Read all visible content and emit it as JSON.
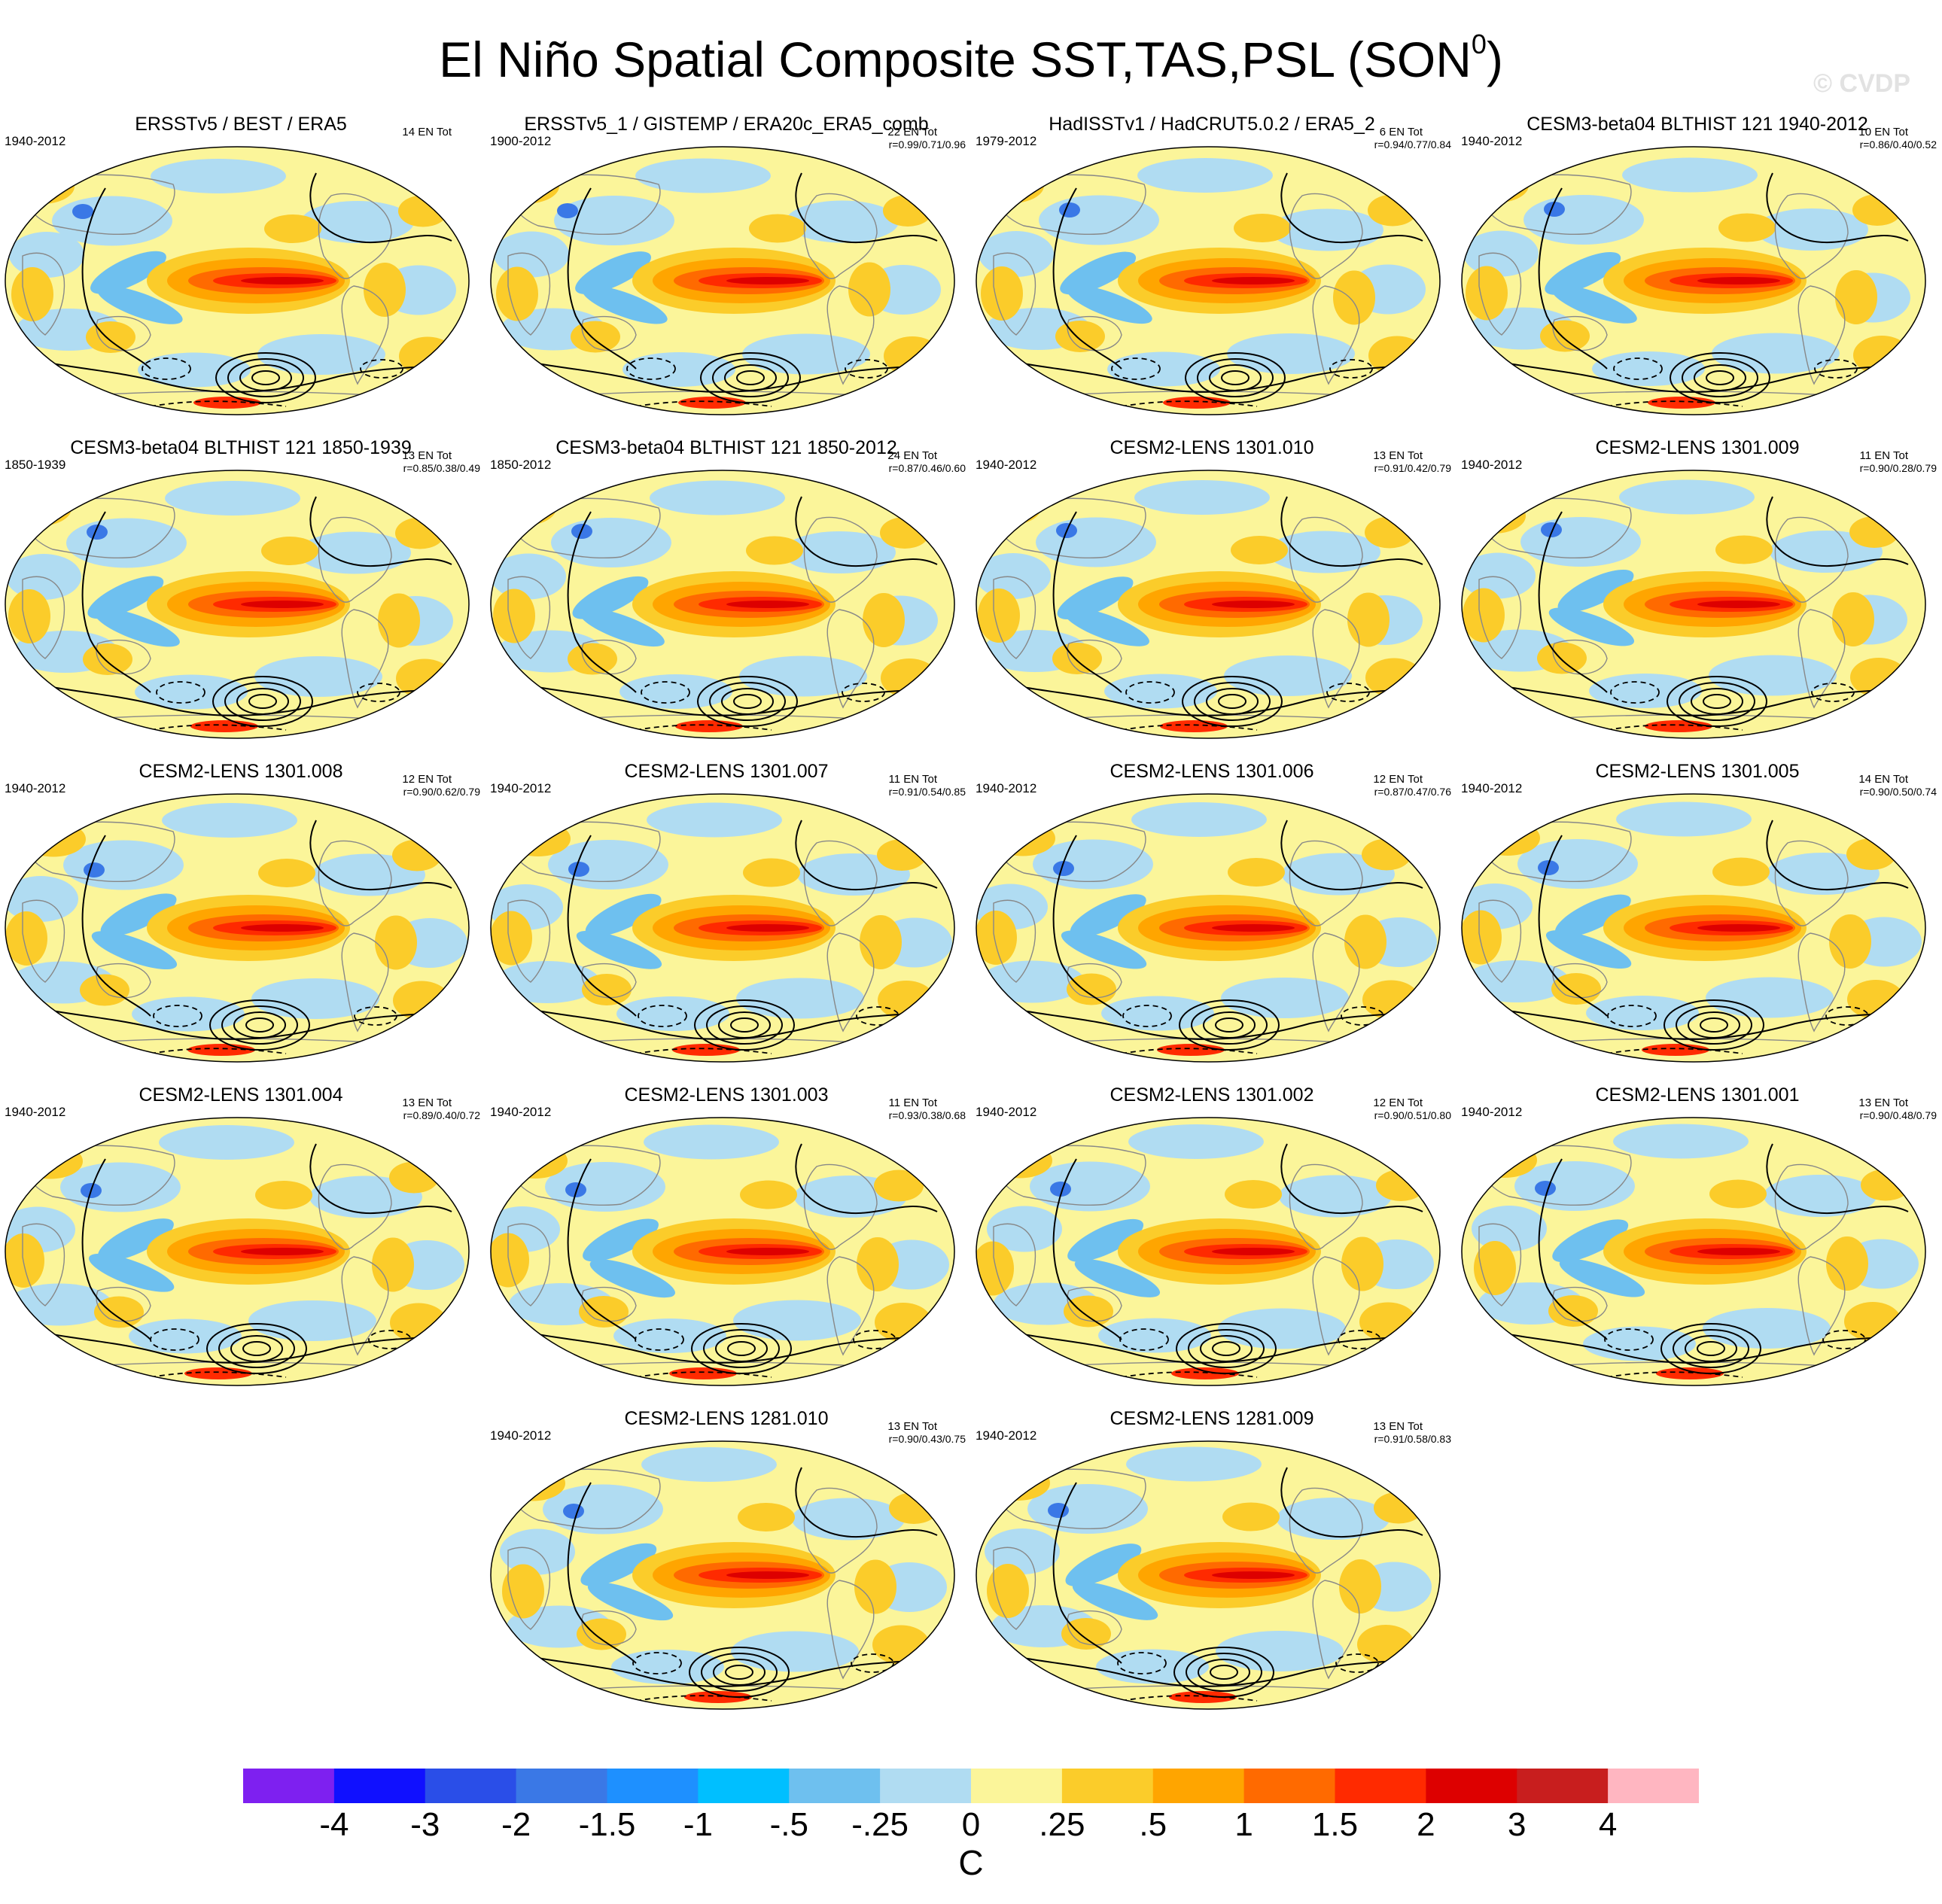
{
  "figure": {
    "title": "El Niño Spatial Composite SST,TAS,PSL (SON",
    "title_superscript": "0",
    "title_close": ")",
    "watermark": "© CVDP"
  },
  "panels": [
    {
      "title": "ERSSTv5 / BEST / ERA5",
      "years": "1940-2012",
      "count": "14 EN Tot",
      "rcorr": ""
    },
    {
      "title": "ERSSTv5_1 / GISTEMP / ERA20c_ERA5_comb",
      "years": "1900-2012",
      "count": "22 EN Tot",
      "rcorr": "r=0.99/0.71/0.96"
    },
    {
      "title": "HadISSTv1 / HadCRUT5.0.2 / ERA5_2",
      "years": "1979-2012",
      "count": "6 EN Tot",
      "rcorr": "r=0.94/0.77/0.84"
    },
    {
      "title": "CESM3-beta04 BLTHIST 121 1940-2012",
      "years": "1940-2012",
      "count": "10 EN Tot",
      "rcorr": "r=0.86/0.40/0.52"
    },
    {
      "title": "CESM3-beta04 BLTHIST 121 1850-1939",
      "years": "1850-1939",
      "count": "13 EN Tot",
      "rcorr": "r=0.85/0.38/0.49"
    },
    {
      "title": "CESM3-beta04 BLTHIST 121 1850-2012",
      "years": "1850-2012",
      "count": "24 EN Tot",
      "rcorr": "r=0.87/0.46/0.60"
    },
    {
      "title": "CESM2-LENS 1301.010",
      "years": "1940-2012",
      "count": "13 EN Tot",
      "rcorr": "r=0.91/0.42/0.79"
    },
    {
      "title": "CESM2-LENS 1301.009",
      "years": "1940-2012",
      "count": "11 EN Tot",
      "rcorr": "r=0.90/0.28/0.79"
    },
    {
      "title": "CESM2-LENS 1301.008",
      "years": "1940-2012",
      "count": "12 EN Tot",
      "rcorr": "r=0.90/0.62/0.79"
    },
    {
      "title": "CESM2-LENS 1301.007",
      "years": "1940-2012",
      "count": "11 EN Tot",
      "rcorr": "r=0.91/0.54/0.85"
    },
    {
      "title": "CESM2-LENS 1301.006",
      "years": "1940-2012",
      "count": "12 EN Tot",
      "rcorr": "r=0.87/0.47/0.76"
    },
    {
      "title": "CESM2-LENS 1301.005",
      "years": "1940-2012",
      "count": "14 EN Tot",
      "rcorr": "r=0.90/0.50/0.74"
    },
    {
      "title": "CESM2-LENS 1301.004",
      "years": "1940-2012",
      "count": "13 EN Tot",
      "rcorr": "r=0.89/0.40/0.72"
    },
    {
      "title": "CESM2-LENS 1301.003",
      "years": "1940-2012",
      "count": "11 EN Tot",
      "rcorr": "r=0.93/0.38/0.68"
    },
    {
      "title": "CESM2-LENS 1301.002",
      "years": "1940-2012",
      "count": "12 EN Tot",
      "rcorr": "r=0.90/0.51/0.80"
    },
    {
      "title": "CESM2-LENS 1301.001",
      "years": "1940-2012",
      "count": "13 EN Tot",
      "rcorr": "r=0.90/0.48/0.79"
    },
    {
      "title": "CESM2-LENS 1281.010",
      "years": "1940-2012",
      "count": "13 EN Tot",
      "rcorr": "r=0.90/0.43/0.75"
    },
    {
      "title": "CESM2-LENS 1281.009",
      "years": "1940-2012",
      "count": "13 EN Tot",
      "rcorr": "r=0.91/0.58/0.83"
    }
  ],
  "colorbar": {
    "colors": [
      "#7e20f0",
      "#1010ff",
      "#2a4ee8",
      "#3a78e6",
      "#1e90ff",
      "#00bfff",
      "#6ec0ef",
      "#b0dcf2",
      "#fbf59a",
      "#fbcc2a",
      "#ffa500",
      "#ff6a00",
      "#ff2a00",
      "#dd0000",
      "#c81e1e",
      "#ffb6c1"
    ],
    "labels": [
      "-4",
      "-3",
      "-2",
      "-1.5",
      "-1",
      "-.5",
      "-.25",
      "0",
      ".25",
      ".5",
      "1",
      "1.5",
      "2",
      "3",
      "4"
    ],
    "units": "C"
  }
}
